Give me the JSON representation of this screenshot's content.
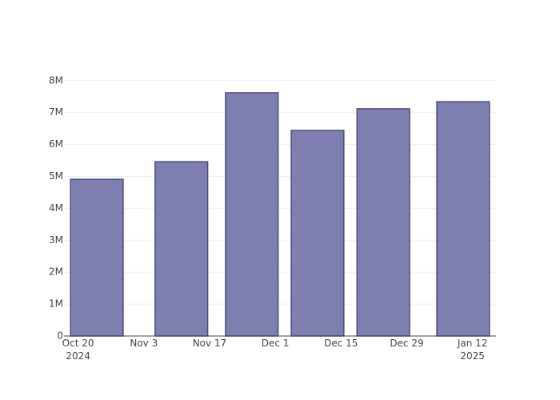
{
  "chart_data": {
    "type": "bar",
    "x": [
      "2024-10-24",
      "2024-11-11",
      "2024-11-26",
      "2024-12-10",
      "2024-12-24",
      "2025-01-10"
    ],
    "values": [
      4910000,
      5460000,
      7620000,
      6440000,
      7120000,
      7340000
    ],
    "color": "#7f7faf",
    "edge_color": "#4a4a82",
    "xlim": [
      "2024-10-17",
      "2025-01-17"
    ],
    "xticks": [
      {
        "value": "2024-10-20",
        "label": "Oct 20\n2024"
      },
      {
        "value": "2024-11-03",
        "label": "Nov 3"
      },
      {
        "value": "2024-11-17",
        "label": "Nov 17"
      },
      {
        "value": "2024-12-01",
        "label": "Dec 1"
      },
      {
        "value": "2024-12-15",
        "label": "Dec 15"
      },
      {
        "value": "2024-12-29",
        "label": "Dec 29"
      },
      {
        "value": "2025-01-12",
        "label": "Jan 12\n2025"
      }
    ],
    "ylim": [
      0,
      8020000
    ],
    "yticks": [
      0,
      {
        "value": 1000000,
        "label": "1M"
      },
      {
        "value": 2000000,
        "label": "2M"
      },
      {
        "value": 3000000,
        "label": "3M"
      },
      {
        "value": 4000000,
        "label": "4M"
      },
      {
        "value": 5000000,
        "label": "5M"
      },
      {
        "value": 6000000,
        "label": "6M"
      },
      {
        "value": 7000000,
        "label": "7M"
      },
      {
        "value": 8000000,
        "label": "8M"
      }
    ],
    "grid": true
  }
}
